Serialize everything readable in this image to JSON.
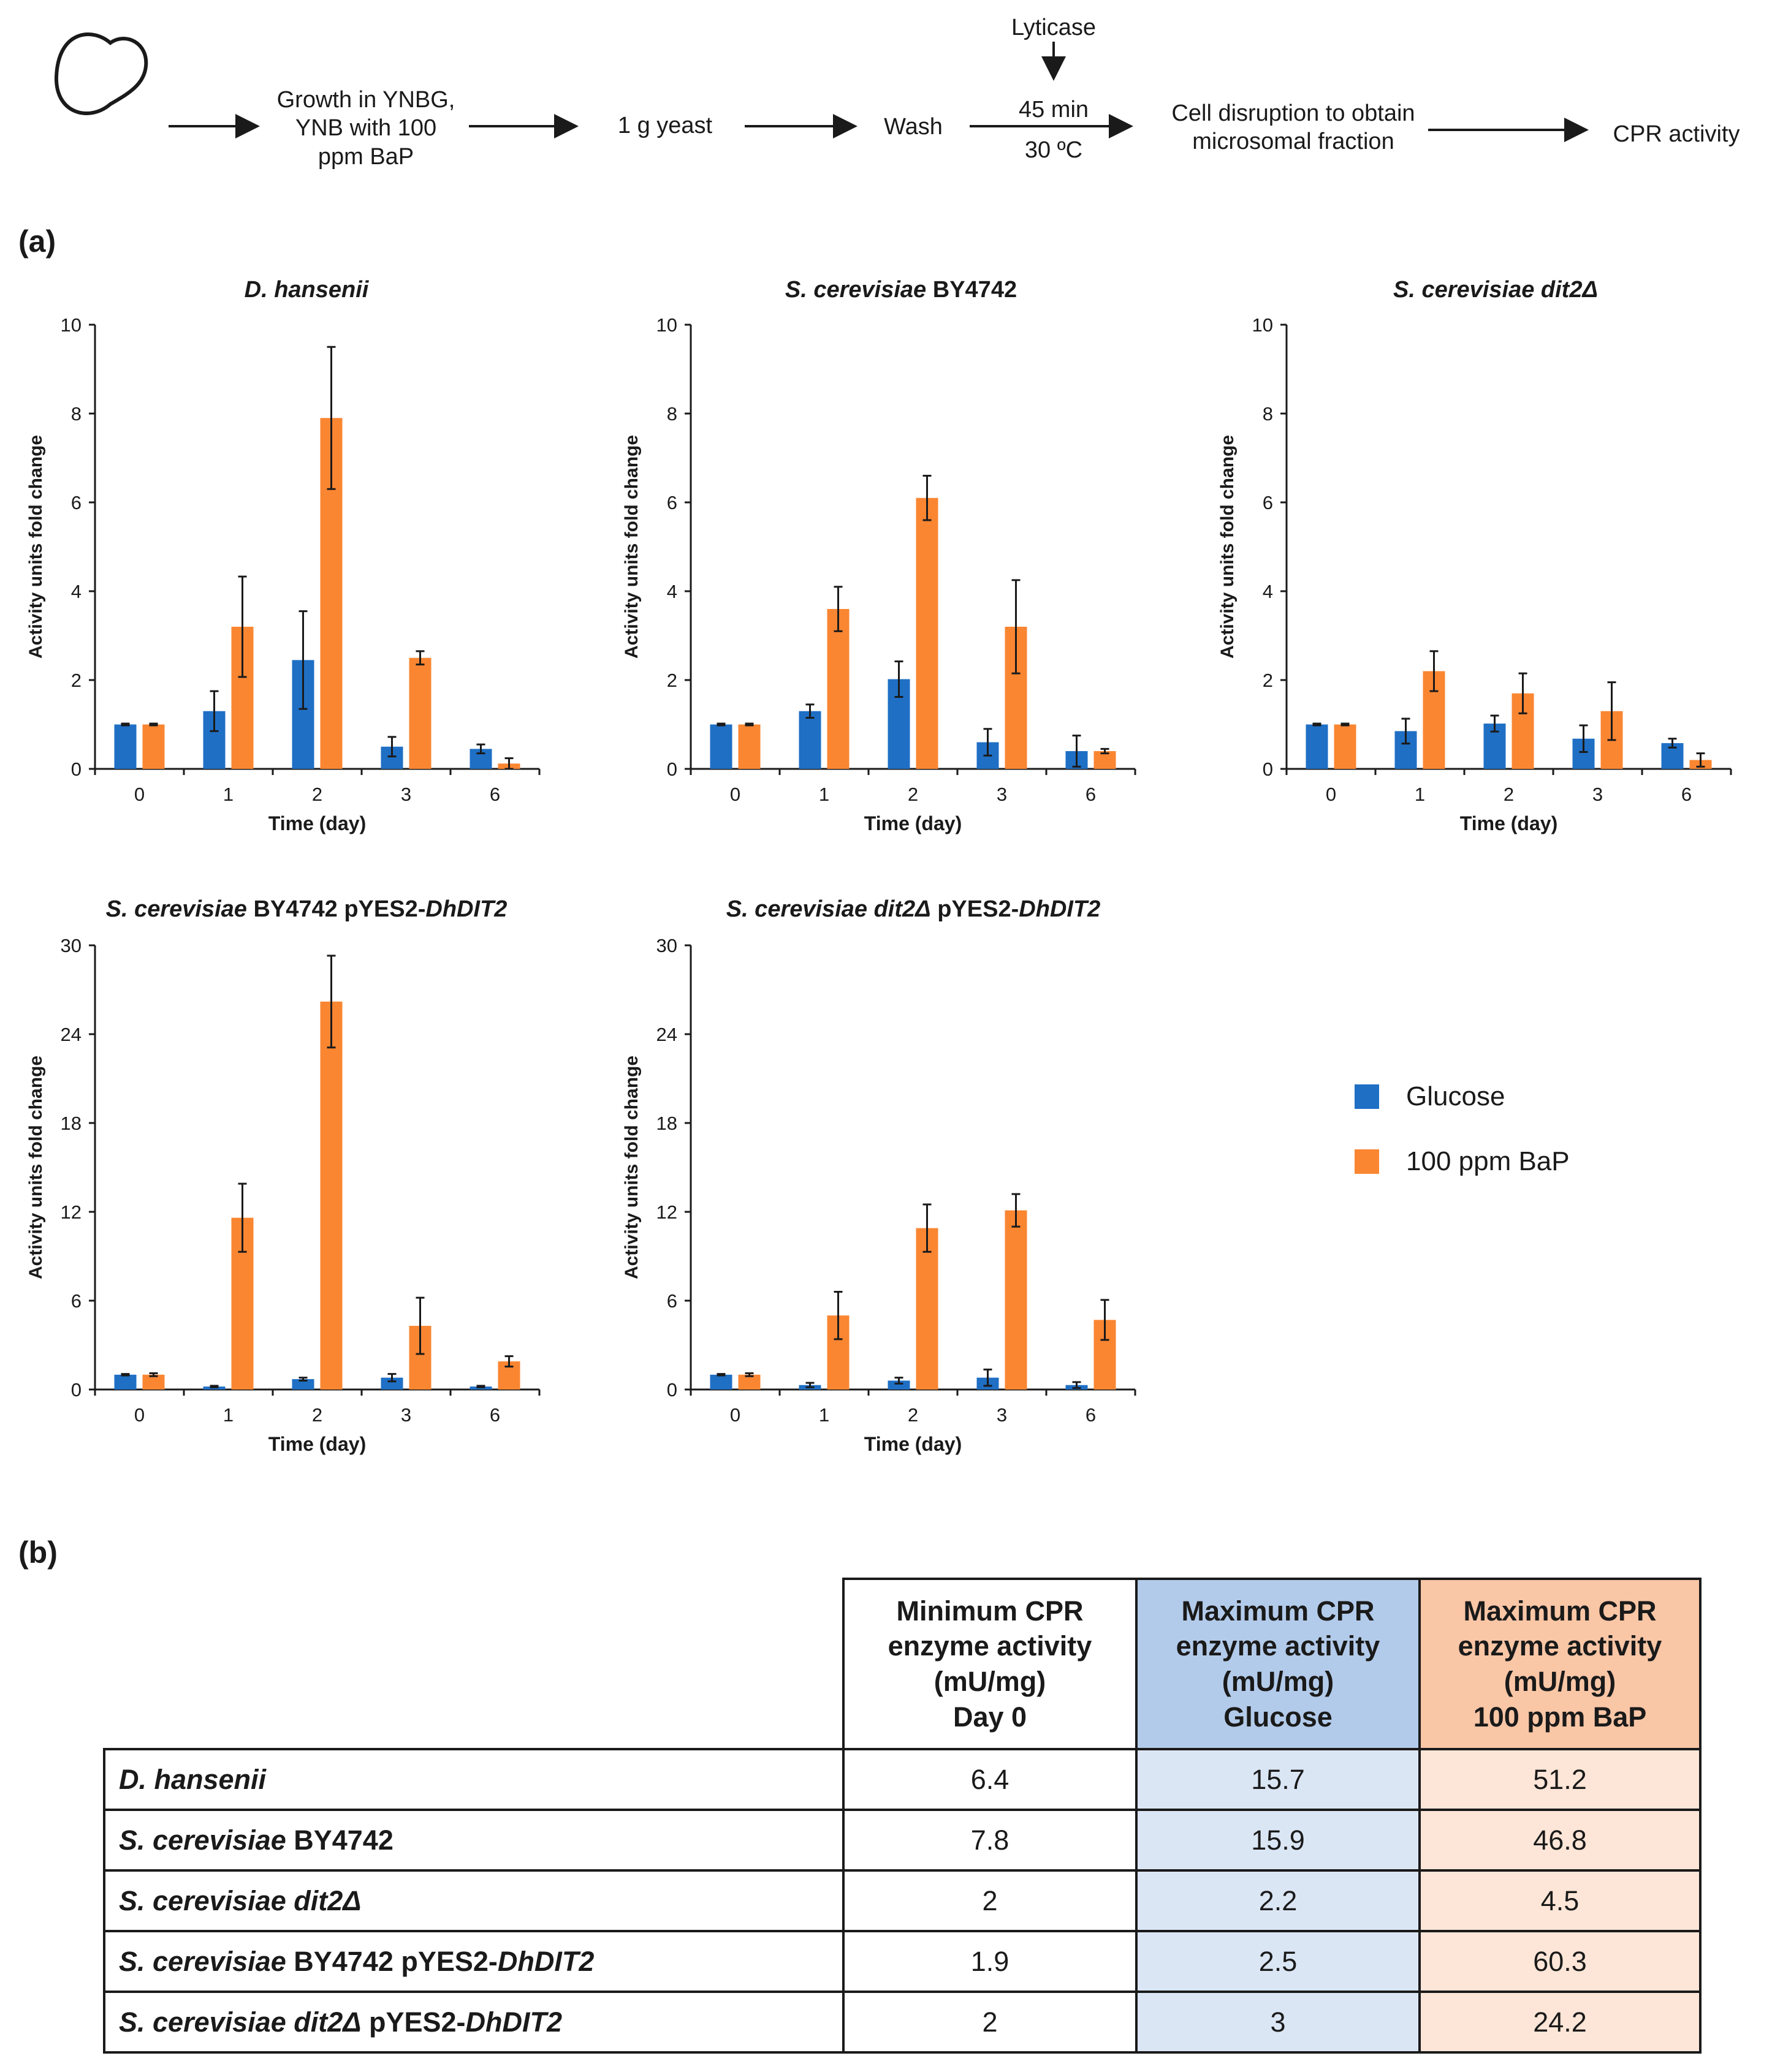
{
  "flow": {
    "steps": [
      "Growth in YNBG,\nYNB with 100\nppm BaP",
      "1 g yeast",
      "Wash",
      "Cell disruption to obtain\nmicrosomal fraction",
      "CPR activity"
    ],
    "lyticase": "Lyticase",
    "incubation_time": "45 min",
    "incubation_temp": "30 ºC"
  },
  "panel_labels": {
    "a": "(a)",
    "b": "(b)"
  },
  "legend": [
    {
      "label": "Glucose",
      "color": "#1f6fc5"
    },
    {
      "label": "100 ppm BaP",
      "color": "#fa8632"
    }
  ],
  "chart_data": [
    {
      "type": "bar",
      "title": "D. hansenii",
      "title_parts": [
        {
          "text": "D. hansenii",
          "italic": true
        }
      ],
      "xlabel": "Time (day)",
      "ylabel": "Activity units fold change",
      "categories": [
        "0",
        "1",
        "2",
        "3",
        "6"
      ],
      "ylim": [
        0,
        10
      ],
      "yticks": [
        0,
        2,
        4,
        6,
        8,
        10
      ],
      "series": [
        {
          "name": "Glucose",
          "values": [
            1.0,
            1.3,
            2.45,
            0.5,
            0.45
          ],
          "errors": [
            0.02,
            0.45,
            1.1,
            0.22,
            0.1
          ]
        },
        {
          "name": "100 ppm BaP",
          "values": [
            1.0,
            3.2,
            7.9,
            2.5,
            0.12
          ],
          "errors": [
            0.02,
            1.13,
            1.6,
            0.15,
            0.12
          ]
        }
      ]
    },
    {
      "type": "bar",
      "title": "S. cerevisiae BY4742",
      "title_parts": [
        {
          "text": "S. cerevisiae",
          "italic": true
        },
        {
          "text": " BY4742",
          "italic": false
        }
      ],
      "xlabel": "Time (day)",
      "ylabel": "Activity units fold change",
      "categories": [
        "0",
        "1",
        "2",
        "3",
        "6"
      ],
      "ylim": [
        0,
        10
      ],
      "yticks": [
        0,
        2,
        4,
        6,
        8,
        10
      ],
      "series": [
        {
          "name": "Glucose",
          "values": [
            1.0,
            1.3,
            2.02,
            0.6,
            0.4
          ],
          "errors": [
            0.02,
            0.15,
            0.4,
            0.3,
            0.35
          ]
        },
        {
          "name": "100 ppm BaP",
          "values": [
            1.0,
            3.6,
            6.1,
            3.2,
            0.4
          ],
          "errors": [
            0.02,
            0.5,
            0.5,
            1.05,
            0.05
          ]
        }
      ]
    },
    {
      "type": "bar",
      "title": "S. cerevisiae dit2Δ",
      "title_parts": [
        {
          "text": "S. cerevisiae dit2Δ",
          "italic": true
        }
      ],
      "xlabel": "Time (day)",
      "ylabel": "Activity units fold change",
      "categories": [
        "0",
        "1",
        "2",
        "3",
        "6"
      ],
      "ylim": [
        0,
        10
      ],
      "yticks": [
        0,
        2,
        4,
        6,
        8,
        10
      ],
      "series": [
        {
          "name": "Glucose",
          "values": [
            1.0,
            0.85,
            1.02,
            0.68,
            0.58
          ],
          "errors": [
            0.02,
            0.28,
            0.18,
            0.3,
            0.1
          ]
        },
        {
          "name": "100 ppm BaP",
          "values": [
            1.0,
            2.2,
            1.7,
            1.3,
            0.2
          ],
          "errors": [
            0.02,
            0.45,
            0.45,
            0.65,
            0.15
          ]
        }
      ]
    },
    {
      "type": "bar",
      "title": "S. cerevisiae BY4742 pYES2-DhDIT2",
      "title_parts": [
        {
          "text": "S. cerevisiae",
          "italic": true
        },
        {
          "text": " BY4742 pYES2-",
          "italic": false
        },
        {
          "text": "DhDIT2",
          "italic": true
        }
      ],
      "xlabel": "Time (day)",
      "ylabel": "Activity units fold change",
      "categories": [
        "0",
        "1",
        "2",
        "3",
        "6"
      ],
      "ylim": [
        0,
        30
      ],
      "yticks": [
        0,
        6,
        12,
        18,
        24,
        30
      ],
      "series": [
        {
          "name": "Glucose",
          "values": [
            1.0,
            0.2,
            0.7,
            0.8,
            0.2
          ],
          "errors": [
            0.05,
            0.05,
            0.1,
            0.25,
            0.05
          ]
        },
        {
          "name": "100 ppm BaP",
          "values": [
            1.0,
            11.6,
            26.2,
            4.3,
            1.9
          ],
          "errors": [
            0.1,
            2.3,
            3.1,
            1.9,
            0.35
          ]
        }
      ]
    },
    {
      "type": "bar",
      "title": "S. cerevisiae dit2Δ pYES2-DhDIT2",
      "title_parts": [
        {
          "text": "S. cerevisiae dit2Δ",
          "italic": true
        },
        {
          "text": " pYES2-",
          "italic": false
        },
        {
          "text": "DhDIT2",
          "italic": true
        }
      ],
      "xlabel": "Time (day)",
      "ylabel": "Activity units fold change",
      "categories": [
        "0",
        "1",
        "2",
        "3",
        "6"
      ],
      "ylim": [
        0,
        30
      ],
      "yticks": [
        0,
        6,
        12,
        18,
        24,
        30
      ],
      "series": [
        {
          "name": "Glucose",
          "values": [
            1.0,
            0.3,
            0.6,
            0.8,
            0.3
          ],
          "errors": [
            0.05,
            0.15,
            0.2,
            0.55,
            0.2
          ]
        },
        {
          "name": "100 ppm BaP",
          "values": [
            1.0,
            5.0,
            10.9,
            12.1,
            4.7
          ],
          "errors": [
            0.1,
            1.6,
            1.6,
            1.1,
            1.35
          ]
        }
      ]
    }
  ],
  "table": {
    "headers": [
      "Minimum CPR\nenzyme activity\n(mU/mg)\nDay 0",
      "Maximum CPR\nenzyme activity\n(mU/mg)\nGlucose",
      "Maximum CPR\nenzyme activity\n(mU/mg)\n100 ppm BaP"
    ],
    "header_colors": [
      "#ffffff",
      "#b3cbea",
      "#f9c6a6"
    ],
    "cell_colors": [
      "#ffffff",
      "#dbe6f5",
      "#fde6d7"
    ],
    "rows": [
      {
        "label_parts": [
          {
            "text": "D. hansenii",
            "italic": true
          }
        ],
        "values": [
          "6.4",
          "15.7",
          "51.2"
        ]
      },
      {
        "label_parts": [
          {
            "text": "S. cerevisiae",
            "italic": true
          },
          {
            "text": " BY4742",
            "italic": false
          }
        ],
        "values": [
          "7.8",
          "15.9",
          "46.8"
        ]
      },
      {
        "label_parts": [
          {
            "text": "S. cerevisiae dit2Δ",
            "italic": true
          }
        ],
        "values": [
          "2",
          "2.2",
          "4.5"
        ]
      },
      {
        "label_parts": [
          {
            "text": "S. cerevisiae",
            "italic": true
          },
          {
            "text": " BY4742 pYES2-",
            "italic": false
          },
          {
            "text": "DhDIT2",
            "italic": true
          }
        ],
        "values": [
          "1.9",
          "2.5",
          "60.3"
        ]
      },
      {
        "label_parts": [
          {
            "text": "S. cerevisiae dit2Δ",
            "italic": true
          },
          {
            "text": " pYES2-",
            "italic": false
          },
          {
            "text": "DhDIT2",
            "italic": true
          }
        ],
        "values": [
          "2",
          "3",
          "24.2"
        ]
      }
    ]
  }
}
